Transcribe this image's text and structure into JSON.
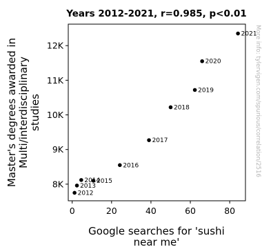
{
  "chart_data": {
    "type": "scatter",
    "title": "Years 2012-2021, r=0.985, p<0.01",
    "xlabel_lines": [
      "Google searches for 'sushi",
      "near me'"
    ],
    "ylabel_lines": [
      "Master's degrees awarded in",
      "Multi/interdisciplinary",
      "studies"
    ],
    "xlim": [
      -2,
      88
    ],
    "ylim": [
      7520,
      12620
    ],
    "x_ticks": [
      {
        "value": 0,
        "label": "0"
      },
      {
        "value": 20,
        "label": "20"
      },
      {
        "value": 40,
        "label": "40"
      },
      {
        "value": 60,
        "label": "60"
      },
      {
        "value": 80,
        "label": "80"
      }
    ],
    "y_ticks": [
      {
        "value": 8000,
        "label": "8K"
      },
      {
        "value": 9000,
        "label": "9K"
      },
      {
        "value": 10000,
        "label": "10K"
      },
      {
        "value": 11000,
        "label": "11K"
      },
      {
        "value": 12000,
        "label": "12K"
      }
    ],
    "points": [
      {
        "label": "2012",
        "x": 1.2,
        "y": 7750
      },
      {
        "label": "2013",
        "x": 2.4,
        "y": 7960
      },
      {
        "label": "2014",
        "x": 4.6,
        "y": 8120
      },
      {
        "label": "2015",
        "x": 10.8,
        "y": 8100
      },
      {
        "label": "2016",
        "x": 24.2,
        "y": 8550
      },
      {
        "label": "2017",
        "x": 39.0,
        "y": 9270
      },
      {
        "label": "2018",
        "x": 50.0,
        "y": 10220
      },
      {
        "label": "2019",
        "x": 62.3,
        "y": 10720
      },
      {
        "label": "2020",
        "x": 66.0,
        "y": 11550
      },
      {
        "label": "2021",
        "x": 84.2,
        "y": 12350
      }
    ],
    "grid": false,
    "legend": "none",
    "point_color": "#000000",
    "watermark": "More info: tylervigen.com/spurious/correlation/2516"
  }
}
